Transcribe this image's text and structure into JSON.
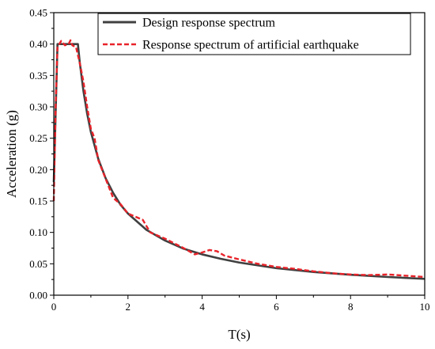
{
  "chart_data": {
    "type": "line",
    "title": "",
    "xlabel": "T(s)",
    "ylabel": "Acceleration (g)",
    "xlim": [
      0,
      10
    ],
    "ylim": [
      0,
      0.45
    ],
    "x_ticks": [
      "0",
      "2",
      "4",
      "6",
      "8",
      "10"
    ],
    "y_ticks": [
      "0.00",
      "0.05",
      "0.10",
      "0.15",
      "0.20",
      "0.25",
      "0.30",
      "0.35",
      "0.40",
      "0.45"
    ],
    "grid": false,
    "legend_position": "top-right",
    "series": [
      {
        "name": "Design response spectrum",
        "color": "#404040",
        "style": "solid",
        "x": [
          0.0,
          0.1,
          0.2,
          0.3,
          0.4,
          0.5,
          0.65,
          0.7,
          0.8,
          0.9,
          1.0,
          1.2,
          1.4,
          1.6,
          1.8,
          2.0,
          2.5,
          3.0,
          3.5,
          4.0,
          4.5,
          5.0,
          6.0,
          7.0,
          8.0,
          9.0,
          10.0
        ],
        "y": [
          0.18,
          0.4,
          0.4,
          0.4,
          0.4,
          0.4,
          0.4,
          0.371,
          0.325,
          0.289,
          0.26,
          0.217,
          0.186,
          0.163,
          0.144,
          0.13,
          0.104,
          0.087,
          0.074,
          0.065,
          0.058,
          0.052,
          0.043,
          0.037,
          0.0325,
          0.029,
          0.026
        ]
      },
      {
        "name": "Response spectrum of artificial earthquake",
        "color": "#e8232a",
        "style": "dashed",
        "x": [
          0.0,
          0.05,
          0.1,
          0.15,
          0.2,
          0.3,
          0.4,
          0.45,
          0.5,
          0.6,
          0.7,
          0.8,
          0.9,
          1.0,
          1.1,
          1.2,
          1.4,
          1.6,
          1.8,
          2.0,
          2.2,
          2.4,
          2.6,
          3.0,
          3.5,
          3.8,
          4.0,
          4.2,
          4.4,
          4.6,
          5.0,
          5.5,
          6.0,
          6.5,
          7.0,
          7.5,
          8.0,
          8.5,
          9.0,
          9.5,
          10.0
        ],
        "y": [
          0.15,
          0.3,
          0.395,
          0.4,
          0.405,
          0.398,
          0.4,
          0.406,
          0.398,
          0.395,
          0.37,
          0.34,
          0.3,
          0.265,
          0.25,
          0.215,
          0.185,
          0.155,
          0.145,
          0.13,
          0.125,
          0.12,
          0.1,
          0.09,
          0.075,
          0.065,
          0.068,
          0.072,
          0.07,
          0.063,
          0.057,
          0.05,
          0.045,
          0.042,
          0.038,
          0.035,
          0.033,
          0.032,
          0.033,
          0.031,
          0.029
        ]
      }
    ]
  }
}
